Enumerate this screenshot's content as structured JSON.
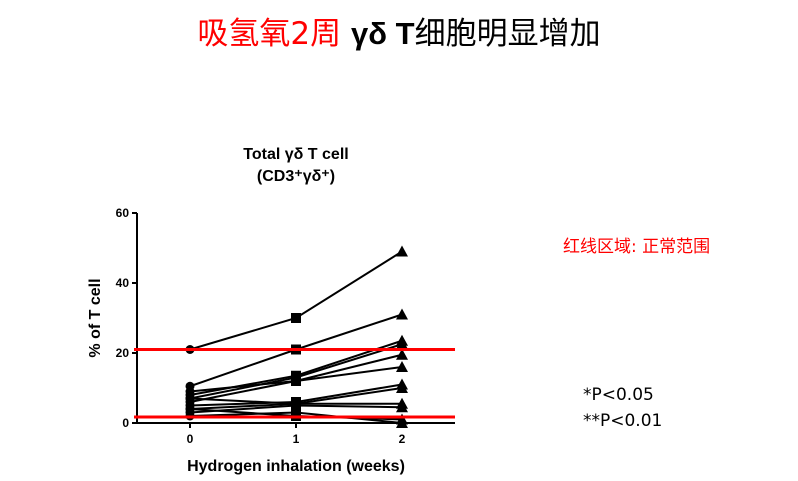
{
  "slide_title": {
    "red_part": "吸氢氧2周",
    "bold_part": "γδ T",
    "black_part": "细胞明显增加"
  },
  "legend_note": "红线区域: 正常范围",
  "significance": [
    "*P<0.05",
    "**P<0.01"
  ],
  "chart_data": {
    "type": "line",
    "title": "Total γδ T cell",
    "subtitle": "(CD3⁺γδ⁺)",
    "xlabel": "Hydrogen inhalation (weeks)",
    "ylabel": "% of T cell",
    "x": [
      0,
      1,
      2
    ],
    "xticks": [
      "0",
      "1",
      "2"
    ],
    "yticks": [
      "0",
      "20",
      "40",
      "60"
    ],
    "ylim": [
      0,
      60
    ],
    "xlim": [
      -0.5,
      2.5
    ],
    "markers": [
      "circle",
      "square",
      "triangle"
    ],
    "reference_lines": [
      21,
      1.7
    ],
    "reference_color": "#ff0000",
    "series": [
      {
        "values": [
          21,
          30,
          49
        ]
      },
      {
        "values": [
          10.5,
          21,
          31
        ]
      },
      {
        "values": [
          8,
          13.5,
          23.5
        ]
      },
      {
        "values": [
          7,
          13,
          22.5
        ]
      },
      {
        "values": [
          6,
          12,
          19.5
        ]
      },
      {
        "values": [
          9,
          12,
          16
        ]
      },
      {
        "values": [
          5,
          6,
          11
        ]
      },
      {
        "values": [
          4,
          5.5,
          10
        ]
      },
      {
        "values": [
          7,
          5.5,
          5.5
        ]
      },
      {
        "values": [
          3,
          5,
          4.5
        ]
      },
      {
        "values": [
          4,
          2,
          1
        ]
      },
      {
        "values": [
          2,
          3,
          0
        ]
      }
    ]
  }
}
